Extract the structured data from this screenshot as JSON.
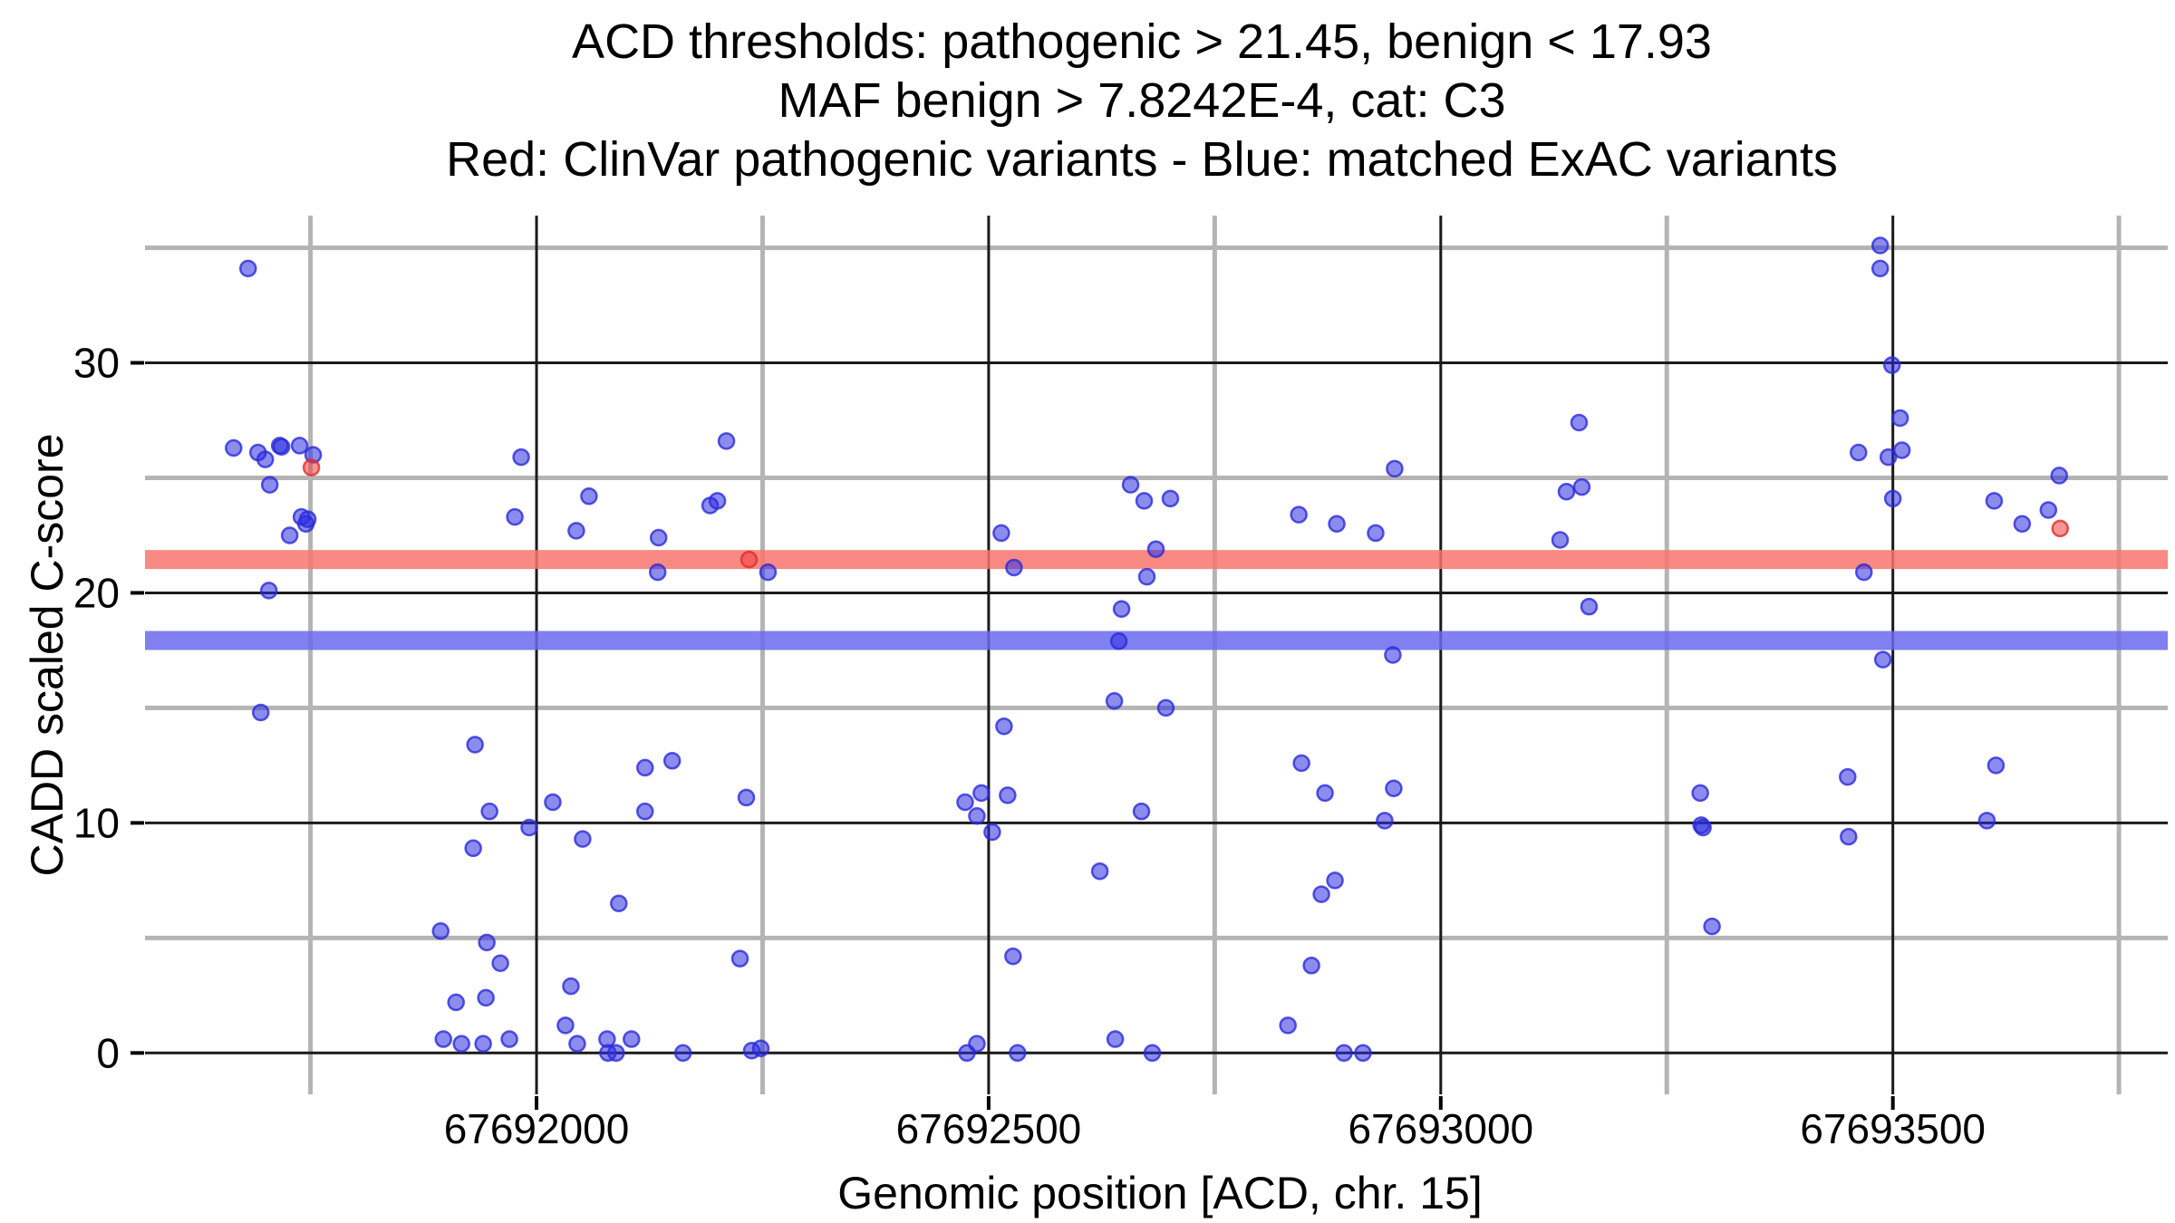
{
  "title": {
    "line1": "ACD thresholds: pathogenic > 21.45, benign < 17.93",
    "line2": "MAF benign > 7.8242E-4, cat: C3",
    "line3": "Red: ClinVar pathogenic variants - Blue: matched ExAC variants"
  },
  "chart_data": {
    "type": "scatter",
    "title": "ACD thresholds: pathogenic > 21.45, benign < 17.93 | MAF benign > 7.8242E-4, cat: C3 | Red: ClinVar pathogenic variants - Blue: matched ExAC variants",
    "xlabel": "Genomic position [ACD, chr. 15]",
    "ylabel": "CADD scaled C-score",
    "xlim": [
      67691567,
      67693804
    ],
    "ylim": [
      -1.8,
      36.4
    ],
    "x_ticks": [
      67692000,
      67692500,
      67693000,
      67693500
    ],
    "x_minor_gridlines": [
      67691750,
      67692250,
      67692750,
      67693250,
      67693750
    ],
    "y_ticks": [
      0,
      10,
      20,
      30
    ],
    "y_minor_gridlines": [
      5,
      15,
      25,
      35
    ],
    "grid": "major dark thin lines at labeled ticks, thick light-gray minor lines between",
    "legend_position": "none (series colors explained in title line 3)",
    "thresholds": {
      "acd_pathogenic": 21.45,
      "acd_benign": 17.93,
      "maf_benign": "7.8242E-4",
      "category": "C3"
    },
    "bands": [
      {
        "name": "pathogenic-threshold",
        "y": 21.45,
        "color": "#F8766D",
        "half_height": 0.42
      },
      {
        "name": "benign-threshold",
        "y": 17.93,
        "color": "#6A6AEF",
        "half_height": 0.42
      }
    ],
    "series": [
      {
        "name": "matched ExAC variants",
        "color_stroke": "#2B2BD9",
        "color_fill": "#2D2DE1",
        "fill_opacity": 0.55,
        "points": [
          [
            67691665,
            26.3
          ],
          [
            67691681,
            34.1
          ],
          [
            67691692,
            26.1
          ],
          [
            67691695,
            14.8
          ],
          [
            67691700,
            25.8
          ],
          [
            67691704,
            20.1
          ],
          [
            67691705,
            24.7
          ],
          [
            67691716,
            26.4
          ],
          [
            67691718,
            26.35
          ],
          [
            67691727,
            22.5
          ],
          [
            67691738,
            26.4
          ],
          [
            67691740,
            23.3
          ],
          [
            67691745,
            23.0
          ],
          [
            67691747,
            23.2
          ],
          [
            67691753,
            26.0
          ],
          [
            67691894,
            5.3
          ],
          [
            67691897,
            0.6
          ],
          [
            67691911,
            2.2
          ],
          [
            67691917,
            0.4
          ],
          [
            67691930,
            8.9
          ],
          [
            67691932,
            13.4
          ],
          [
            67691941,
            0.4
          ],
          [
            67691944,
            2.4
          ],
          [
            67691945,
            4.8
          ],
          [
            67691948,
            10.5
          ],
          [
            67691960,
            3.9
          ],
          [
            67691970,
            0.6
          ],
          [
            67691976,
            23.3
          ],
          [
            67691983,
            25.9
          ],
          [
            67691992,
            9.8
          ],
          [
            67692018,
            10.9
          ],
          [
            67692032,
            1.2
          ],
          [
            67692038,
            2.9
          ],
          [
            67692044,
            22.7
          ],
          [
            67692045,
            0.4
          ],
          [
            67692051,
            9.3
          ],
          [
            67692058,
            24.2
          ],
          [
            67692078,
            0.6
          ],
          [
            67692079,
            0.0
          ],
          [
            67692088,
            0.0
          ],
          [
            67692091,
            6.5
          ],
          [
            67692105,
            0.6
          ],
          [
            67692120,
            10.5
          ],
          [
            67692120,
            12.4
          ],
          [
            67692134,
            20.9
          ],
          [
            67692135,
            22.4
          ],
          [
            67692150,
            12.7
          ],
          [
            67692162,
            0.0
          ],
          [
            67692192,
            23.8
          ],
          [
            67692200,
            24.0
          ],
          [
            67692210,
            26.6
          ],
          [
            67692225,
            4.1
          ],
          [
            67692232,
            11.1
          ],
          [
            67692238,
            0.1
          ],
          [
            67692248,
            0.2
          ],
          [
            67692256,
            20.9
          ],
          [
            67692474,
            10.9
          ],
          [
            67692476,
            0.0
          ],
          [
            67692487,
            0.4
          ],
          [
            67692487,
            10.3
          ],
          [
            67692492,
            11.3
          ],
          [
            67692504,
            9.6
          ],
          [
            67692514,
            22.6
          ],
          [
            67692517,
            14.2
          ],
          [
            67692521,
            11.2
          ],
          [
            67692527,
            4.2
          ],
          [
            67692528,
            21.1
          ],
          [
            67692532,
            0.0
          ],
          [
            67692623,
            7.9
          ],
          [
            67692639,
            15.3
          ],
          [
            67692640,
            0.6
          ],
          [
            67692644,
            17.9
          ],
          [
            67692647,
            19.3
          ],
          [
            67692657,
            24.7
          ],
          [
            67692669,
            10.5
          ],
          [
            67692672,
            24.0
          ],
          [
            67692675,
            20.7
          ],
          [
            67692681,
            0.0
          ],
          [
            67692685,
            21.9
          ],
          [
            67692696,
            15.0
          ],
          [
            67692701,
            24.1
          ],
          [
            67692831,
            1.2
          ],
          [
            67692843,
            23.4
          ],
          [
            67692846,
            12.6
          ],
          [
            67692857,
            3.8
          ],
          [
            67692868,
            6.9
          ],
          [
            67692872,
            11.3
          ],
          [
            67692883,
            7.5
          ],
          [
            67692885,
            23.0
          ],
          [
            67692893,
            0.0
          ],
          [
            67692914,
            0.0
          ],
          [
            67692928,
            22.6
          ],
          [
            67692938,
            10.1
          ],
          [
            67692947,
            17.3
          ],
          [
            67692948,
            11.5
          ],
          [
            67692949,
            25.4
          ],
          [
            67693132,
            22.3
          ],
          [
            67693139,
            24.4
          ],
          [
            67693153,
            27.4
          ],
          [
            67693156,
            24.6
          ],
          [
            67693164,
            19.4
          ],
          [
            67693287,
            11.3
          ],
          [
            67693288,
            9.9
          ],
          [
            67693290,
            9.8
          ],
          [
            67693300,
            5.5
          ],
          [
            67693450,
            12.0
          ],
          [
            67693451,
            9.4
          ],
          [
            67693462,
            26.1
          ],
          [
            67693468,
            20.9
          ],
          [
            67693486,
            35.1
          ],
          [
            67693486,
            34.1
          ],
          [
            67693489,
            17.1
          ],
          [
            67693495,
            25.9
          ],
          [
            67693499,
            29.9
          ],
          [
            67693500,
            24.1
          ],
          [
            67693508,
            27.6
          ],
          [
            67693510,
            26.2
          ],
          [
            67693604,
            10.1
          ],
          [
            67693612,
            24.0
          ],
          [
            67693614,
            12.5
          ],
          [
            67693643,
            23.0
          ],
          [
            67693672,
            23.6
          ],
          [
            67693684,
            25.1
          ]
        ]
      },
      {
        "name": "ClinVar pathogenic variants",
        "color_stroke": "#E02B2B",
        "color_fill": "#EE4040",
        "fill_opacity": 0.55,
        "points": [
          [
            67691751,
            25.45
          ],
          [
            67692235,
            21.45
          ],
          [
            67693685,
            22.8
          ]
        ]
      }
    ],
    "colors": {
      "major_gridline": "#1a1a1a",
      "minor_gridline": "#b4b4b4",
      "axis_text": "#000000",
      "background": "#ffffff"
    }
  }
}
